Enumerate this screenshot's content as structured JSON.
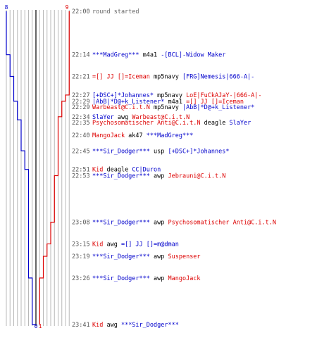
{
  "chart_data": {
    "type": "line",
    "title": "",
    "colors": {
      "team_blue": "#0000cc",
      "team_red": "#dd0000",
      "time": "#555555",
      "event_gray": "#666666",
      "grid": "#b8b8b8",
      "center": "#000000"
    },
    "score_labels": {
      "blue_start": "8",
      "red_start": "9",
      "blue_end": "0",
      "red_end": "1"
    },
    "blue_steps": [
      {
        "t": "22:00",
        "alive": 8
      },
      {
        "t": "22:14",
        "alive": 7
      },
      {
        "t": "22:21",
        "alive": 6
      },
      {
        "t": "22:29",
        "alive": 5
      },
      {
        "t": "22:35",
        "alive": 4
      },
      {
        "t": "22:45",
        "alive": 3
      },
      {
        "t": "22:51",
        "alive": 2
      },
      {
        "t": "23:26",
        "alive": 1
      },
      {
        "t": "23:41",
        "alive": 0
      }
    ],
    "red_steps": [
      {
        "t": "22:00",
        "alive": 9
      },
      {
        "t": "22:27",
        "alive": 8
      },
      {
        "t": "22:29",
        "alive": 7
      },
      {
        "t": "22:34",
        "alive": 6
      },
      {
        "t": "22:53",
        "alive": 5
      },
      {
        "t": "23:08",
        "alive": 4
      },
      {
        "t": "23:15",
        "alive": 3
      },
      {
        "t": "23:19",
        "alive": 2
      },
      {
        "t": "23:26",
        "alive": 1
      }
    ],
    "events": [
      {
        "time": "22:00",
        "parts": [
          {
            "text": "round started",
            "c": "gray"
          }
        ]
      },
      {
        "time": "22:14",
        "parts": [
          {
            "text": "***MadGreg***",
            "c": "blue"
          },
          {
            "text": " m4a1 ",
            "c": "black"
          },
          {
            "text": "-[BCL]-Widow Maker",
            "c": "blue"
          }
        ]
      },
      {
        "time": "22:21",
        "parts": [
          {
            "text": "=[] JJ []=Iceman",
            "c": "red"
          },
          {
            "text": " mp5navy ",
            "c": "black"
          },
          {
            "text": "[FRG]Nemesis|666-A|-",
            "c": "blue"
          }
        ]
      },
      {
        "time": "22:27",
        "parts": [
          {
            "text": "[+DSC+]*Johannes*",
            "c": "blue"
          },
          {
            "text": " mp5navy ",
            "c": "black"
          },
          {
            "text": "LoE|FuCkAJaY-|666-A|-",
            "c": "red"
          }
        ]
      },
      {
        "time": "22:29",
        "parts": [
          {
            "text": "|AbB|*D@+k_Listener*",
            "c": "blue"
          },
          {
            "text": " m4a1 ",
            "c": "black"
          },
          {
            "text": "=[] JJ []=Iceman",
            "c": "red"
          }
        ]
      },
      {
        "time": "22:29",
        "parts": [
          {
            "text": "Warbeast@C.i.t.N",
            "c": "red"
          },
          {
            "text": " mp5navy ",
            "c": "black"
          },
          {
            "text": "|AbB|*D@+k_Listener*",
            "c": "blue"
          }
        ]
      },
      {
        "time": "22:34",
        "parts": [
          {
            "text": "SlaYer",
            "c": "blue"
          },
          {
            "text": " awg ",
            "c": "black"
          },
          {
            "text": "Warbeast@C.i.t.N",
            "c": "red"
          }
        ]
      },
      {
        "time": "22:35",
        "parts": [
          {
            "text": "Psychosomatischer Anti@C.i.t.N",
            "c": "red"
          },
          {
            "text": " deagle ",
            "c": "black"
          },
          {
            "text": "SlaYer",
            "c": "blue"
          }
        ]
      },
      {
        "time": "22:40",
        "parts": [
          {
            "text": "MangoJack",
            "c": "red"
          },
          {
            "text": " ak47 ",
            "c": "black"
          },
          {
            "text": "***MadGreg***",
            "c": "blue"
          }
        ]
      },
      {
        "time": "22:45",
        "parts": [
          {
            "text": "***Sir_Dodger***",
            "c": "blue"
          },
          {
            "text": " usp ",
            "c": "black"
          },
          {
            "text": "[+DSC+]*Johannes*",
            "c": "blue"
          }
        ]
      },
      {
        "time": "22:51",
        "parts": [
          {
            "text": "Kid",
            "c": "red"
          },
          {
            "text": " deagle ",
            "c": "black"
          },
          {
            "text": "CC|Duron",
            "c": "blue"
          }
        ]
      },
      {
        "time": "22:53",
        "parts": [
          {
            "text": "***Sir_Dodger***",
            "c": "blue"
          },
          {
            "text": " awp ",
            "c": "black"
          },
          {
            "text": "Jebrauni@C.i.t.N",
            "c": "red"
          }
        ]
      },
      {
        "time": "23:08",
        "parts": [
          {
            "text": "***Sir_Dodger***",
            "c": "blue"
          },
          {
            "text": " awp ",
            "c": "black"
          },
          {
            "text": "Psychosomatischer Anti@C.i.t.N",
            "c": "red"
          }
        ]
      },
      {
        "time": "23:15",
        "parts": [
          {
            "text": "Kid",
            "c": "red"
          },
          {
            "text": " awg ",
            "c": "black"
          },
          {
            "text": "=[] JJ []=m@dman",
            "c": "blue"
          }
        ]
      },
      {
        "time": "23:19",
        "parts": [
          {
            "text": "***Sir_Dodger***",
            "c": "blue"
          },
          {
            "text": " awp ",
            "c": "black"
          },
          {
            "text": "Suspenser",
            "c": "red"
          }
        ]
      },
      {
        "time": "23:26",
        "parts": [
          {
            "text": "***Sir_Dodger***",
            "c": "blue"
          },
          {
            "text": " awp ",
            "c": "black"
          },
          {
            "text": "MangoJack",
            "c": "red"
          }
        ]
      },
      {
        "time": "23:41",
        "parts": [
          {
            "text": "Kid",
            "c": "red"
          },
          {
            "text": " awg ",
            "c": "black"
          },
          {
            "text": "***Sir_Dodger***",
            "c": "blue"
          }
        ]
      }
    ]
  }
}
